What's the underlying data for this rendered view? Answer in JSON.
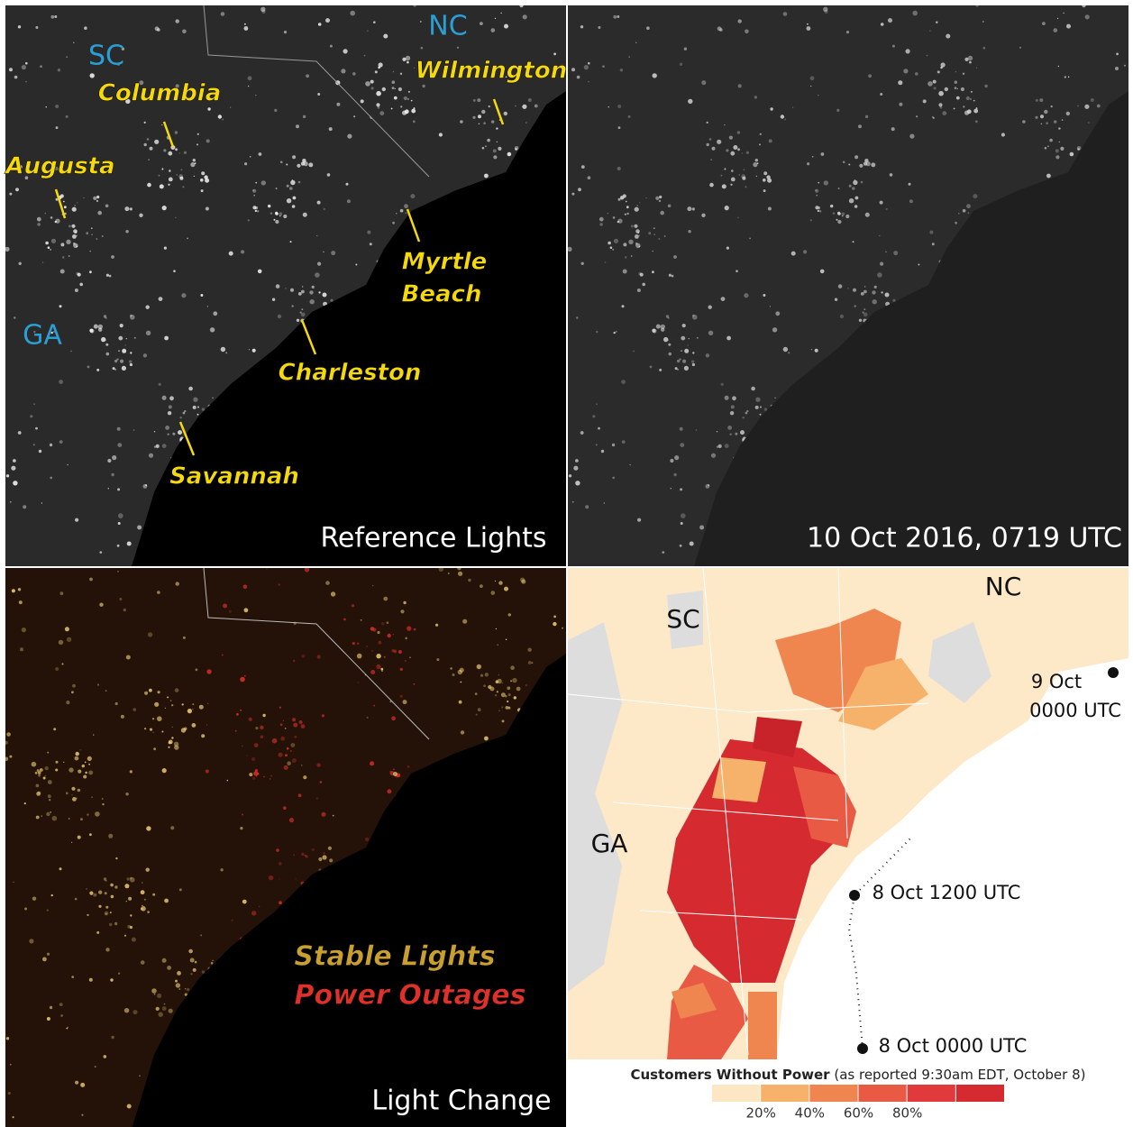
{
  "panels": {
    "reference": {
      "caption": "Reference Lights",
      "states": [
        "SC",
        "NC",
        "GA"
      ],
      "cities": [
        "Columbia",
        "Augusta",
        "Wilmington",
        "Myrtle",
        "Beach",
        "Charleston",
        "Savannah"
      ]
    },
    "after": {
      "caption": "10 Oct 2016, 0719 UTC"
    },
    "change": {
      "caption": "Light Change",
      "legend": [
        "Stable Lights",
        "Power Outages"
      ]
    },
    "outages": {
      "states": [
        "SC",
        "NC",
        "GA"
      ],
      "track": [
        "9 Oct",
        "0000 UTC",
        "8 Oct 1200 UTC",
        "8 Oct 0000 UTC"
      ],
      "legend": {
        "title": "Customers Without Power",
        "note": "(as reported 9:30am EDT, October 8)",
        "colors": [
          "#fde6c4",
          "#f6b26b",
          "#ef8650",
          "#e85a44",
          "#e03a3d",
          "#d42a30"
        ],
        "ticks": [
          "20%",
          "40%",
          "60%",
          "80%"
        ]
      }
    }
  }
}
